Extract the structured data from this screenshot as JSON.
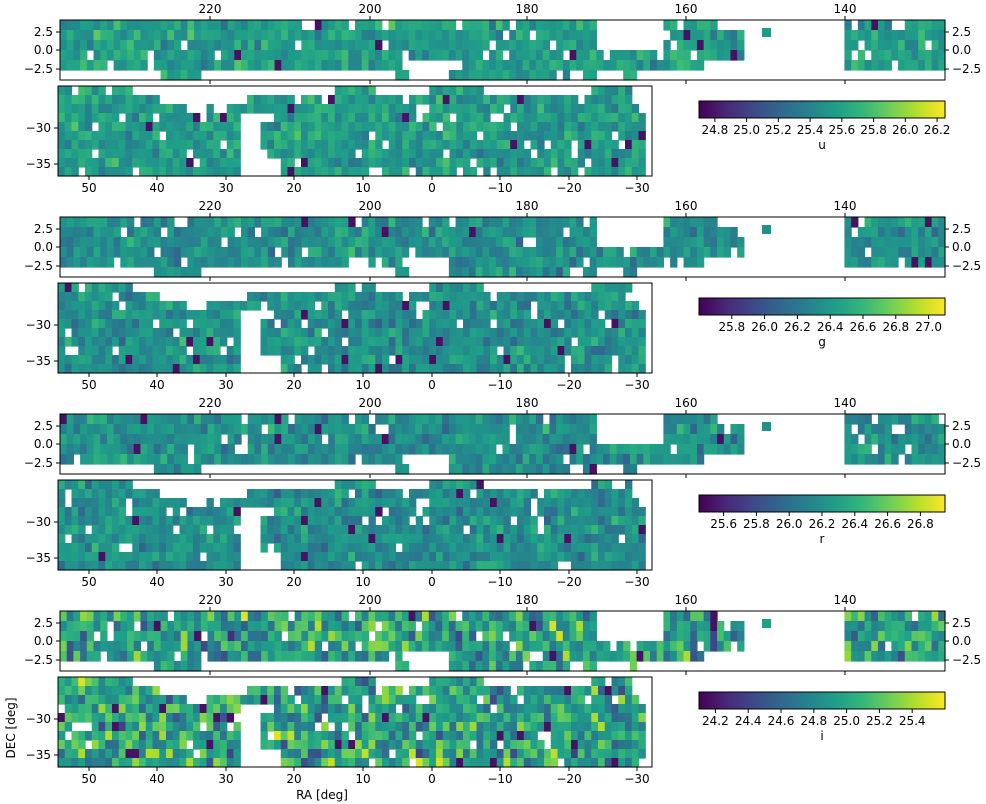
{
  "figure": {
    "xlabel": "RA [deg]",
    "ylabel": "DEC [deg]",
    "colormap": "viridis",
    "viridis_stops": [
      "#440154",
      "#482878",
      "#3e4989",
      "#31688e",
      "#26828e",
      "#1f9e89",
      "#35b779",
      "#6ece58",
      "#b5de2b",
      "#fde725"
    ]
  },
  "chart_data": [
    {
      "type": "heatmap",
      "band": "u",
      "colorbar_label": "u",
      "colorbar_ticks": [
        "24.8",
        "25.0",
        "25.2",
        "25.4",
        "25.6",
        "25.8",
        "26.0",
        "26.2"
      ],
      "colorbar_range": [
        24.7,
        26.25
      ],
      "typical_value": 25.55,
      "north_strip": {
        "ra_ticks": [
          "220",
          "200",
          "180",
          "160",
          "140"
        ],
        "dec_ticks": [
          "2.5",
          "0.0",
          "−2.5"
        ],
        "ra_range": [
          236,
          125
        ],
        "dec_range": [
          -4.2,
          3.5
        ]
      },
      "south_strip": {
        "ra_ticks": [
          "50",
          "40",
          "30",
          "20",
          "10",
          "0",
          "−10",
          "−20",
          "−30"
        ],
        "dec_ticks": [
          "−30",
          "−35"
        ],
        "ra_range": [
          55,
          -32
        ],
        "dec_range": [
          -36.5,
          -26
        ]
      }
    },
    {
      "type": "heatmap",
      "band": "g",
      "colorbar_label": "g",
      "colorbar_ticks": [
        "25.8",
        "26.0",
        "26.2",
        "26.4",
        "26.6",
        "26.8",
        "27.0"
      ],
      "colorbar_range": [
        25.6,
        27.1
      ],
      "typical_value": 26.35,
      "north_strip": {
        "ra_ticks": [
          "220",
          "200",
          "180",
          "160",
          "140"
        ],
        "dec_ticks": [
          "2.5",
          "0.0",
          "−2.5"
        ],
        "ra_range": [
          236,
          125
        ],
        "dec_range": [
          -4.2,
          3.5
        ]
      },
      "south_strip": {
        "ra_ticks": [
          "50",
          "40",
          "30",
          "20",
          "10",
          "0",
          "−10",
          "−20",
          "−30"
        ],
        "dec_ticks": [
          "−30",
          "−35"
        ],
        "ra_range": [
          55,
          -32
        ],
        "dec_range": [
          -36.5,
          -26
        ]
      }
    },
    {
      "type": "heatmap",
      "band": "r",
      "colorbar_label": "r",
      "colorbar_ticks": [
        "25.6",
        "25.8",
        "26.0",
        "26.2",
        "26.4",
        "26.6",
        "26.8"
      ],
      "colorbar_range": [
        25.45,
        26.95
      ],
      "typical_value": 26.2,
      "north_strip": {
        "ra_ticks": [
          "220",
          "200",
          "180",
          "160",
          "140"
        ],
        "dec_ticks": [
          "2.5",
          "0.0",
          "−2.5"
        ],
        "ra_range": [
          236,
          125
        ],
        "dec_range": [
          -4.2,
          3.5
        ]
      },
      "south_strip": {
        "ra_ticks": [
          "50",
          "40",
          "30",
          "20",
          "10",
          "0",
          "−10",
          "−20",
          "−30"
        ],
        "dec_ticks": [
          "−30",
          "−35"
        ],
        "ra_range": [
          55,
          -32
        ],
        "dec_range": [
          -36.5,
          -26
        ]
      }
    },
    {
      "type": "heatmap",
      "band": "i",
      "colorbar_label": "i",
      "colorbar_ticks": [
        "24.2",
        "24.4",
        "24.6",
        "24.8",
        "25.0",
        "25.2",
        "25.4"
      ],
      "colorbar_range": [
        24.1,
        25.6
      ],
      "typical_value": 24.95,
      "north_strip": {
        "ra_ticks": [
          "220",
          "200",
          "180",
          "160",
          "140"
        ],
        "dec_ticks": [
          "2.5",
          "0.0",
          "−2.5"
        ],
        "ra_range": [
          236,
          125
        ],
        "dec_range": [
          -4.2,
          3.5
        ]
      },
      "south_strip": {
        "ra_ticks": [
          "50",
          "40",
          "30",
          "20",
          "10",
          "0",
          "−10",
          "−20",
          "−30"
        ],
        "dec_ticks": [
          "−30",
          "−35"
        ],
        "ra_range": [
          55,
          -32
        ],
        "dec_range": [
          -36.5,
          -26
        ]
      }
    }
  ]
}
